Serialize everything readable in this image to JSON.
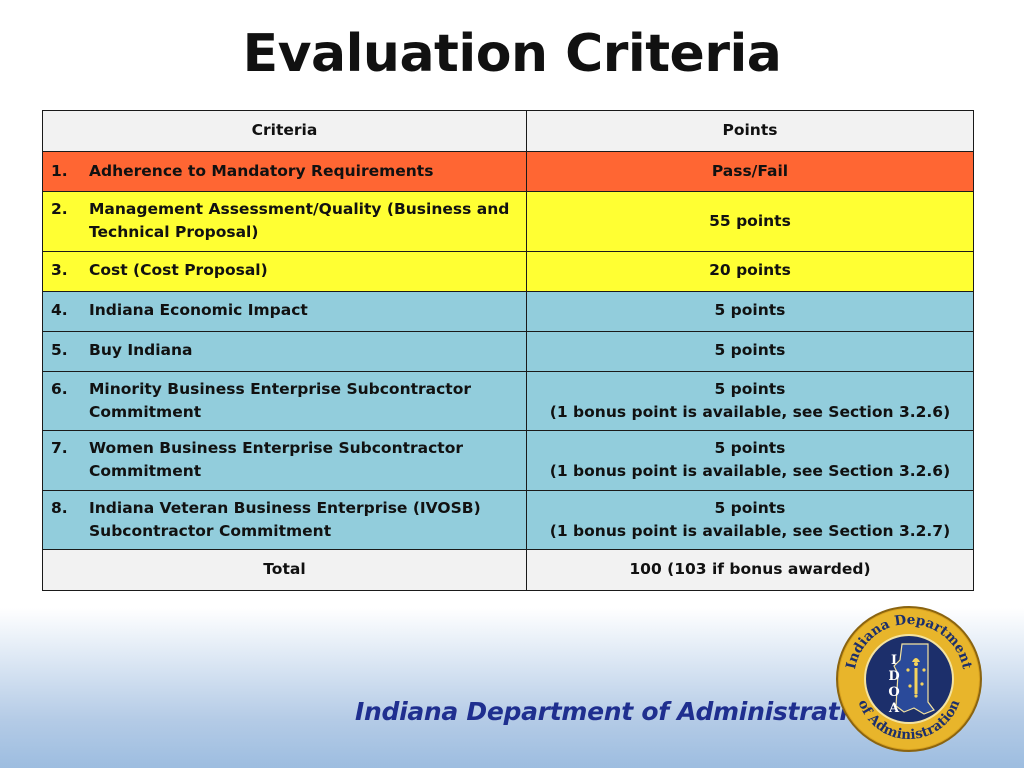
{
  "title": "Evaluation Criteria",
  "table": {
    "header": {
      "criteria": "Criteria",
      "points": "Points"
    },
    "rows": [
      {
        "num": "1.",
        "criteria": "Adherence to Mandatory Requirements",
        "points": "Pass/Fail",
        "points_note": "",
        "color": "#ff6633"
      },
      {
        "num": "2.",
        "criteria": "Management Assessment/Quality (Business and Technical Proposal)",
        "points": "55 points",
        "points_note": "",
        "color": "#ffff33"
      },
      {
        "num": "3.",
        "criteria": "Cost (Cost Proposal)",
        "points": "20 points",
        "points_note": "",
        "color": "#ffff33"
      },
      {
        "num": "4.",
        "criteria": "Indiana Economic Impact",
        "points": "5 points",
        "points_note": "",
        "color": "#92cddc"
      },
      {
        "num": "5.",
        "criteria": "Buy Indiana",
        "points": "5 points",
        "points_note": "",
        "color": "#92cddc"
      },
      {
        "num": "6.",
        "criteria": "Minority Business Enterprise Subcontractor Commitment",
        "points": "5 points",
        "points_note": "(1 bonus point is available, see Section 3.2.6)",
        "color": "#92cddc"
      },
      {
        "num": "7.",
        "criteria": "Women Business Enterprise Subcontractor Commitment",
        "points": "5 points",
        "points_note": "(1 bonus point is available, see Section 3.2.6)",
        "color": "#92cddc"
      },
      {
        "num": "8.",
        "criteria": "Indiana Veteran Business Enterprise (IVOSB) Subcontractor Commitment",
        "points": "5 points",
        "points_note": "(1 bonus point is available, see Section 3.2.7)",
        "color": "#92cddc"
      }
    ],
    "total": {
      "label": "Total",
      "value": "100 (103 if bonus awarded)"
    }
  },
  "footer": {
    "org_name": "Indiana Department of Administration",
    "seal": {
      "top_text": "Indiana Department",
      "bottom_text": "of Administration",
      "initials": [
        "I",
        "D",
        "O",
        "A"
      ],
      "icon": "idoa-seal-icon"
    }
  },
  "colors": {
    "red_row": "#ff6633",
    "yellow_row": "#ffff33",
    "blue_row": "#92cddc",
    "header_row": "#f2f2f2",
    "footer_text": "#1f2f8f",
    "seal_ring": "#d9a21f"
  }
}
